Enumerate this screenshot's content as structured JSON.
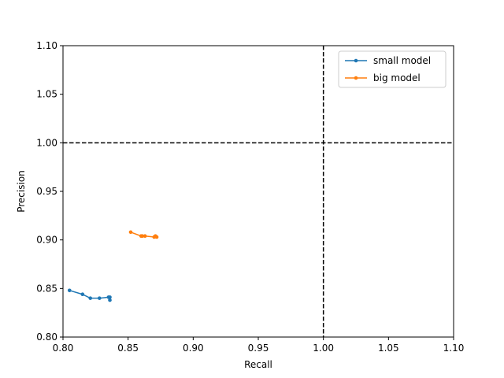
{
  "chart_data": {
    "type": "line",
    "title": "",
    "xlabel": "Recall",
    "ylabel": "Precision",
    "xlim": [
      0.8,
      1.1
    ],
    "ylim": [
      0.8,
      1.1
    ],
    "xticks": [
      "0.80",
      "0.85",
      "0.90",
      "0.95",
      "1.00",
      "1.05",
      "1.10"
    ],
    "yticks": [
      "0.80",
      "0.85",
      "0.90",
      "0.95",
      "1.00",
      "1.05",
      "1.10"
    ],
    "grid": false,
    "legend_position": "top-right",
    "reference_lines": [
      {
        "orientation": "vertical",
        "value": 1.0,
        "style": "dashed",
        "color": "#000000"
      },
      {
        "orientation": "horizontal",
        "value": 1.0,
        "style": "dashed",
        "color": "#000000"
      }
    ],
    "series": [
      {
        "name": "small model",
        "color": "#1f77b4",
        "points": [
          [
            0.805,
            0.848
          ],
          [
            0.815,
            0.844
          ],
          [
            0.821,
            0.84
          ],
          [
            0.828,
            0.84
          ],
          [
            0.835,
            0.841
          ],
          [
            0.836,
            0.841
          ],
          [
            0.836,
            0.838
          ]
        ]
      },
      {
        "name": "big model",
        "color": "#ff7f0e",
        "points": [
          [
            0.852,
            0.908
          ],
          [
            0.86,
            0.904
          ],
          [
            0.861,
            0.904
          ],
          [
            0.863,
            0.904
          ],
          [
            0.87,
            0.903
          ],
          [
            0.871,
            0.904
          ],
          [
            0.872,
            0.903
          ]
        ]
      }
    ]
  }
}
